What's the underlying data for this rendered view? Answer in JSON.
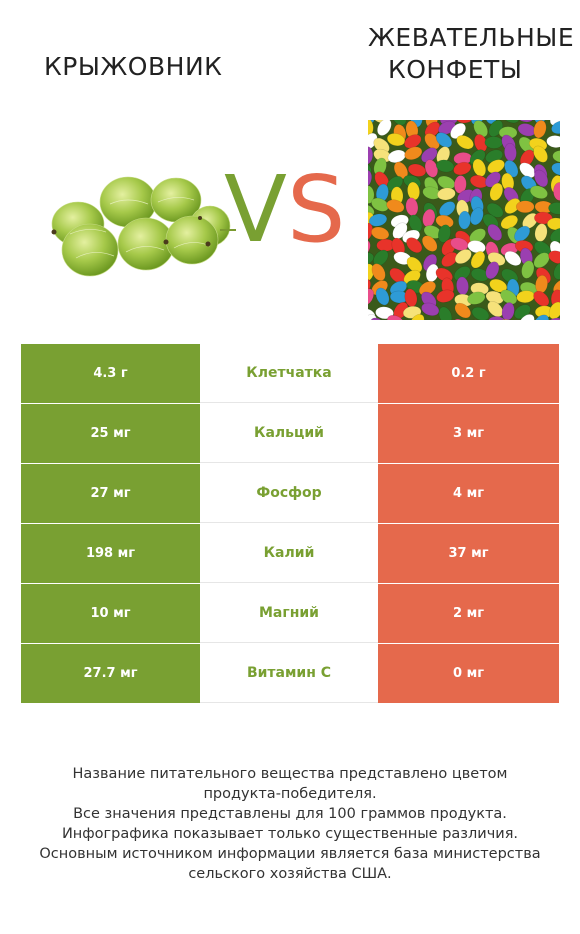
{
  "left_product": {
    "title": "КРЫЖОВНИК"
  },
  "right_product": {
    "title_line1": "ЖЕВАТЕЛЬНЫЕ",
    "title_line2": "КОНФЕТЫ"
  },
  "vs": {
    "v": "V",
    "s": "S"
  },
  "colors": {
    "left": "#79a032",
    "right": "#e5694c"
  },
  "nutrients": [
    {
      "left": "4.3 г",
      "name": "Клетчатка",
      "right": "0.2 г"
    },
    {
      "left": "25 мг",
      "name": "Кальций",
      "right": "3 мг"
    },
    {
      "left": "27 мг",
      "name": "Фосфор",
      "right": "4 мг"
    },
    {
      "left": "198 мг",
      "name": "Калий",
      "right": "37 мг"
    },
    {
      "left": "10 мг",
      "name": "Магний",
      "right": "2 мг"
    },
    {
      "left": "27.7 мг",
      "name": "Витамин C",
      "right": "0 мг"
    }
  ],
  "footer": {
    "line1": "Название питательного вещества представлено цветом",
    "line2": "продукта-победителя.",
    "line3": "Все значения представлены для 100 граммов продукта.",
    "line4": "Инфографика показывает только существенные различия.",
    "line5": "Основным источником информации является база министерства",
    "line6": "сельского хозяйства США."
  }
}
